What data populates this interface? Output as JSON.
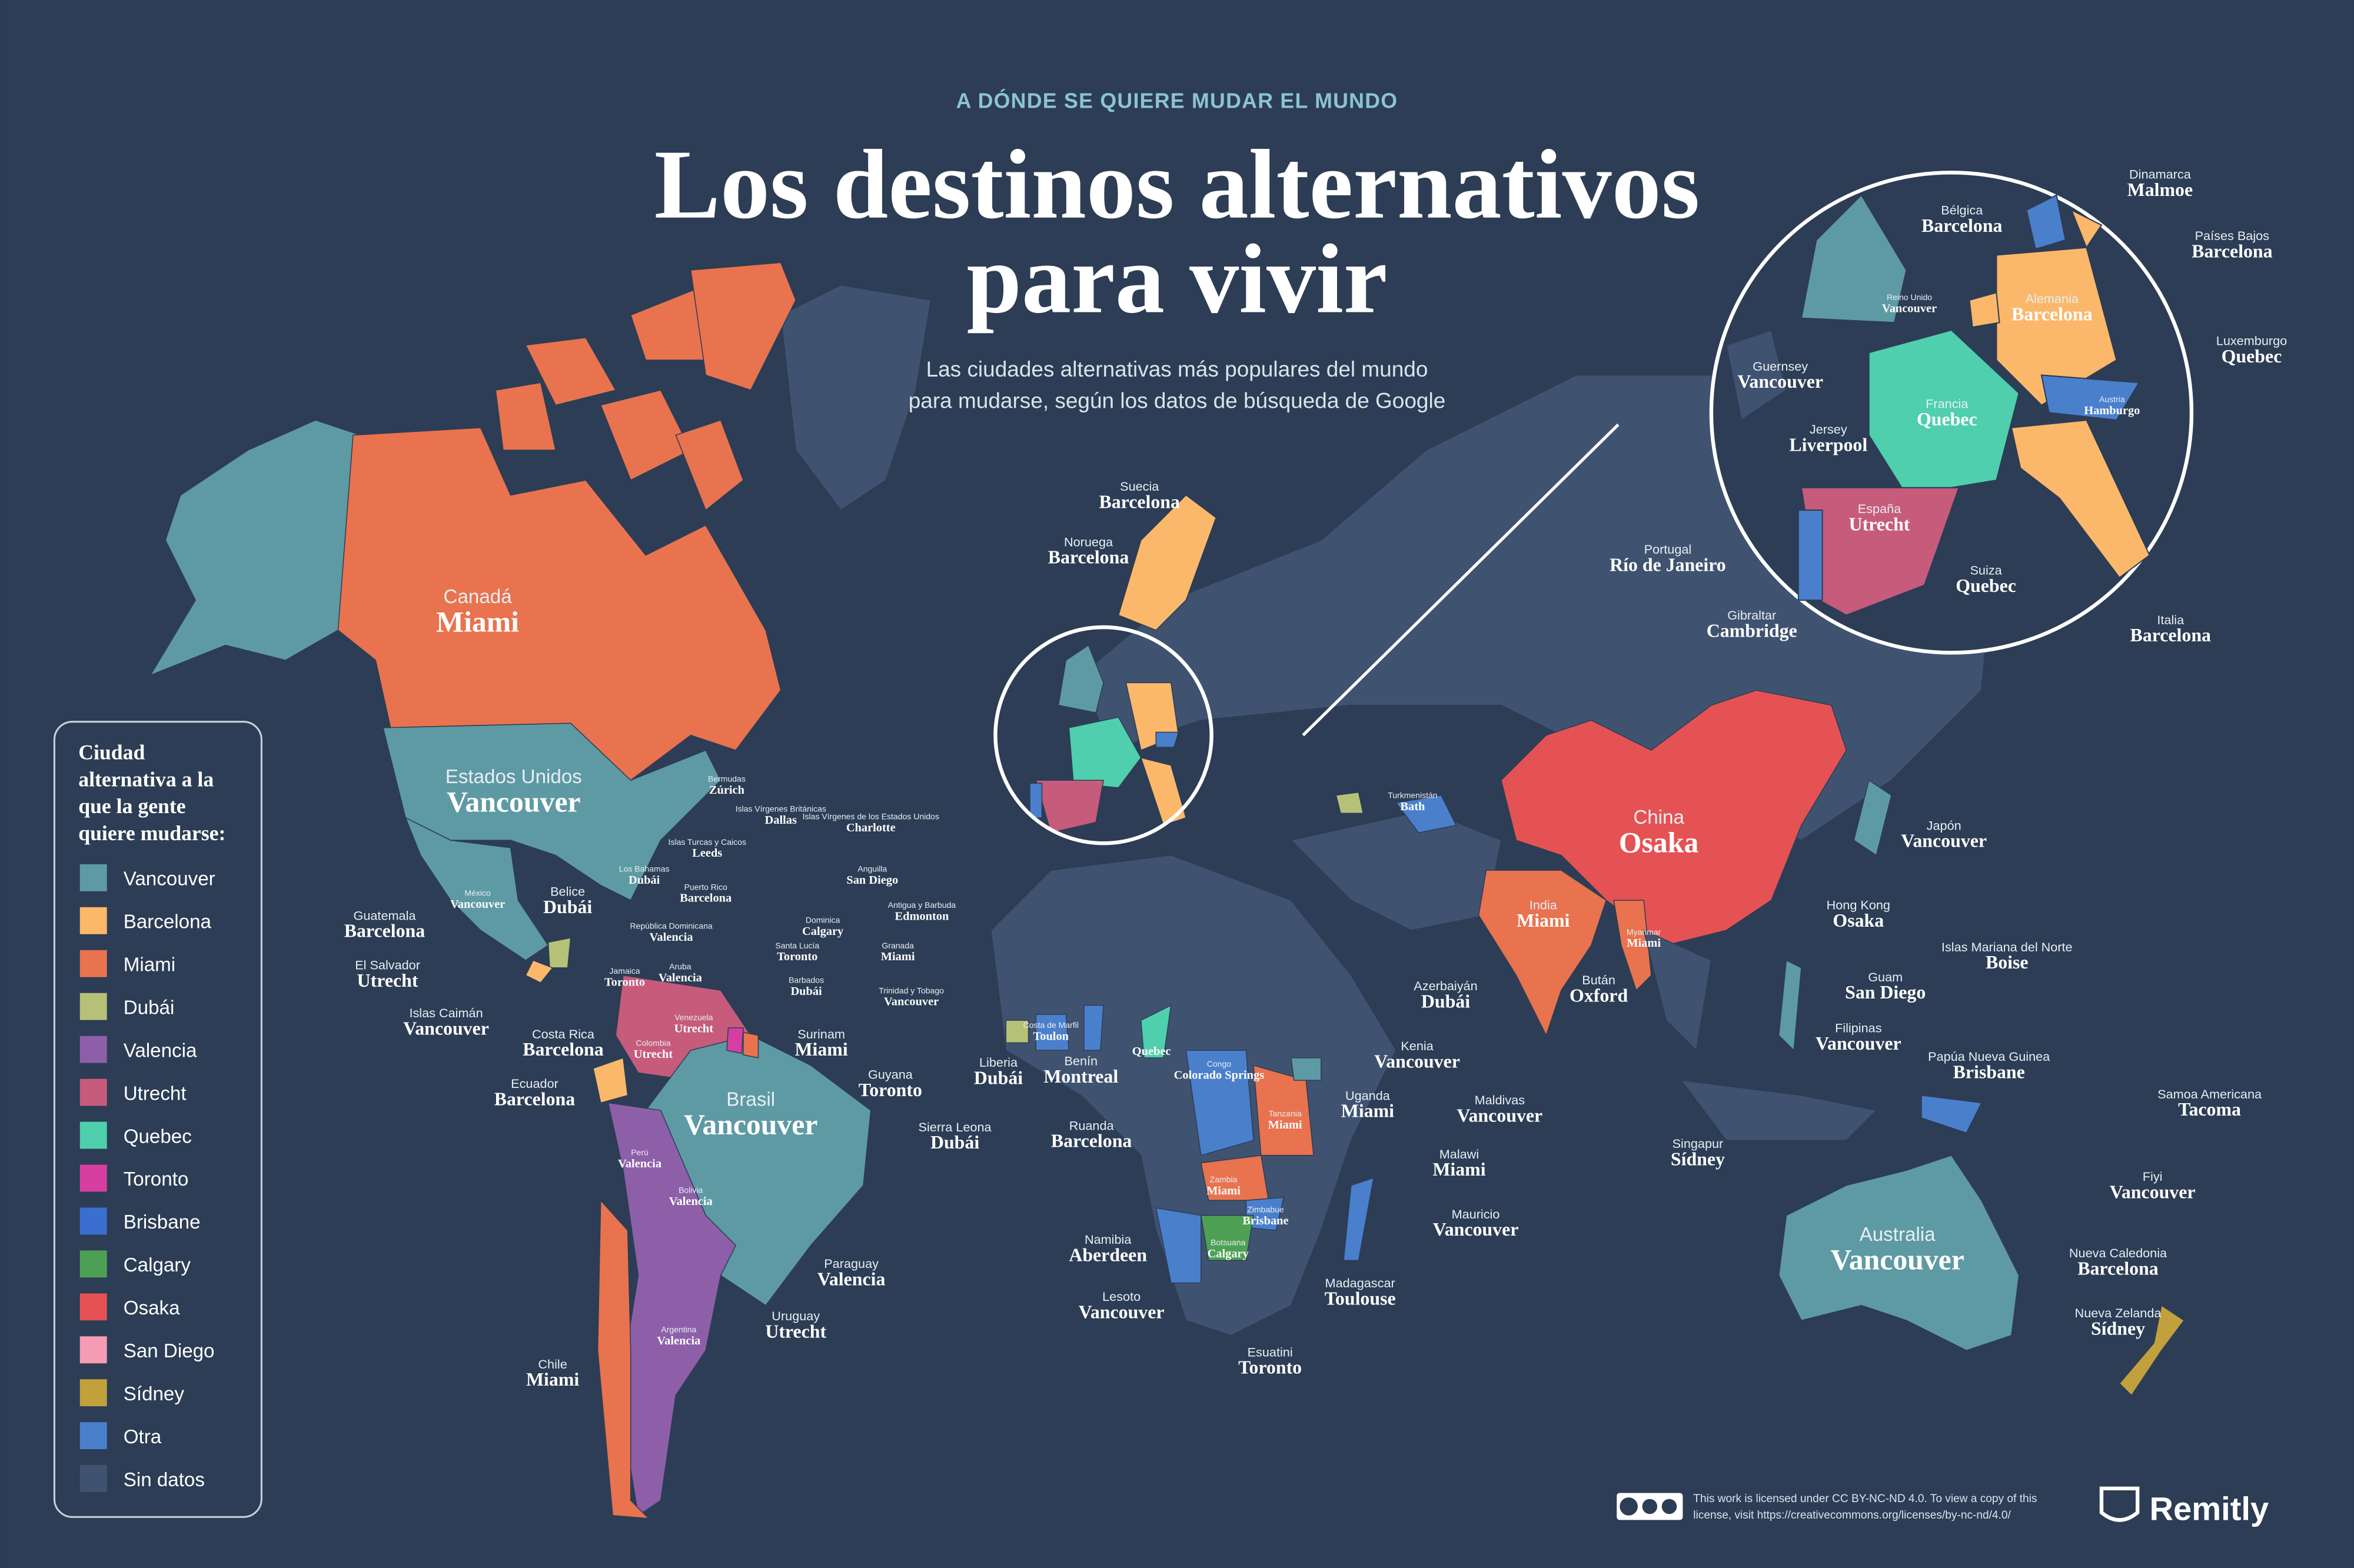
{
  "header": {
    "kicker": "A DÓNDE SE QUIERE MUDAR EL MUNDO",
    "title_lines": [
      "Los destinos alternativos",
      "para vivir"
    ],
    "description_lines": [
      "Las ciudades alternativas más populares del mundo",
      "para mudarse, según los datos de búsqueda de Google"
    ]
  },
  "legend": {
    "title_lines": [
      "Ciudad",
      "alternativa a la",
      "que la gente",
      "quiere mudarse:"
    ],
    "items": [
      {
        "name": "Vancouver",
        "color": "#5e9aa4"
      },
      {
        "name": "Barcelona",
        "color": "#fbb86a"
      },
      {
        "name": "Miami",
        "color": "#e8734e"
      },
      {
        "name": "Dubái",
        "color": "#b5c177"
      },
      {
        "name": "Valencia",
        "color": "#8d5fa9"
      },
      {
        "name": "Utrecht",
        "color": "#c65b7c"
      },
      {
        "name": "Quebec",
        "color": "#4fcfad"
      },
      {
        "name": "Toronto",
        "color": "#d63fa0"
      },
      {
        "name": "Brisbane",
        "color": "#3a6fcf"
      },
      {
        "name": "Calgary",
        "color": "#4ea154"
      },
      {
        "name": "Osaka",
        "color": "#e55254"
      },
      {
        "name": "San Diego",
        "color": "#f59cb4"
      },
      {
        "name": "Sídney",
        "color": "#c2a13c"
      },
      {
        "name": "Otra",
        "color": "#4a7fcc"
      },
      {
        "name": "Sin datos",
        "color": "#3f5370"
      }
    ]
  },
  "labels": [
    {
      "country": "Canadá",
      "city": "Miami"
    },
    {
      "country": "Estados Unidos",
      "city": "Vancouver"
    },
    {
      "country": "México",
      "city": "Vancouver"
    },
    {
      "country": "Belice",
      "city": "Dubái"
    },
    {
      "country": "Guatemala",
      "city": "Barcelona"
    },
    {
      "country": "El Salvador",
      "city": "Utrecht"
    },
    {
      "country": "Islas Caimán",
      "city": "Vancouver"
    },
    {
      "country": "Jamaica",
      "city": "Toronto"
    },
    {
      "country": "Costa Rica",
      "city": "Barcelona"
    },
    {
      "country": "Ecuador",
      "city": "Barcelona"
    },
    {
      "country": "Colombia",
      "city": "Utrecht"
    },
    {
      "country": "Venezuela",
      "city": "Utrecht"
    },
    {
      "country": "Surinam",
      "city": "Miami"
    },
    {
      "country": "Guyana",
      "city": "Toronto"
    },
    {
      "country": "Brasil",
      "city": "Vancouver"
    },
    {
      "country": "Perú",
      "city": "Valencia"
    },
    {
      "country": "Bolivia",
      "city": "Valencia"
    },
    {
      "country": "Paraguay",
      "city": "Valencia"
    },
    {
      "country": "Uruguay",
      "city": "Utrecht"
    },
    {
      "country": "Argentina",
      "city": "Valencia"
    },
    {
      "country": "Chile",
      "city": "Miami"
    },
    {
      "country": "Bermudas",
      "city": "Zúrich"
    },
    {
      "country": "Islas Vírgenes Británicas",
      "city": "Dallas"
    },
    {
      "country": "Islas Vírgenes de los Estados Unidos",
      "city": "Charlotte"
    },
    {
      "country": "Los Bahamas",
      "city": "Dubái"
    },
    {
      "country": "Islas Turcas y Caicos",
      "city": "Leeds"
    },
    {
      "country": "Anguilla",
      "city": "San Diego"
    },
    {
      "country": "Puerto Rico",
      "city": "Barcelona"
    },
    {
      "country": "Antigua y Barbuda",
      "city": "Edmonton"
    },
    {
      "country": "República Dominicana",
      "city": "Valencia"
    },
    {
      "country": "Dominica",
      "city": "Calgary"
    },
    {
      "country": "Santa Lucía",
      "city": "Toronto"
    },
    {
      "country": "Granada",
      "city": "Miami"
    },
    {
      "country": "Aruba",
      "city": "Valencia"
    },
    {
      "country": "Barbados",
      "city": "Dubái"
    },
    {
      "country": "Trinidad y Tobago",
      "city": "Vancouver"
    },
    {
      "country": "Suecia",
      "city": "Barcelona"
    },
    {
      "country": "Noruega",
      "city": "Barcelona"
    },
    {
      "country": "Liberia",
      "city": "Dubái"
    },
    {
      "country": "Costa de Marfil",
      "city": "Toulon"
    },
    {
      "country": "Sierra Leona",
      "city": "Dubái"
    },
    {
      "country": "Benín",
      "city": "Montreal"
    },
    {
      "city": "Quebec"
    },
    {
      "country": "Congo",
      "city": "Colorado Springs"
    },
    {
      "country": "Ruanda",
      "city": "Barcelona"
    },
    {
      "country": "Tanzania",
      "city": "Miami"
    },
    {
      "country": "Uganda",
      "city": "Miami"
    },
    {
      "country": "Kenia",
      "city": "Vancouver"
    },
    {
      "country": "Maldivas",
      "city": "Vancouver"
    },
    {
      "country": "Malawi",
      "city": "Miami"
    },
    {
      "country": "Zambia",
      "city": "Miami"
    },
    {
      "country": "Zimbabue",
      "city": "Brisbane"
    },
    {
      "country": "Botsuana",
      "city": "Calgary"
    },
    {
      "country": "Namibia",
      "city": "Aberdeen"
    },
    {
      "country": "Mauricio",
      "city": "Vancouver"
    },
    {
      "country": "Madagascar",
      "city": "Toulouse"
    },
    {
      "country": "Lesoto",
      "city": "Vancouver"
    },
    {
      "country": "Esuatini",
      "city": "Toronto"
    },
    {
      "country": "Azerbaiyán",
      "city": "Dubái"
    },
    {
      "country": "Turkmenistán",
      "city": "Bath"
    },
    {
      "country": "China",
      "city": "Osaka"
    },
    {
      "country": "India",
      "city": "Miami"
    },
    {
      "country": "Bután",
      "city": "Oxford"
    },
    {
      "country": "Myanmar",
      "city": "Miami"
    },
    {
      "country": "Japón",
      "city": "Vancouver"
    },
    {
      "country": "Hong Kong",
      "city": "Osaka"
    },
    {
      "country": "Islas Mariana del Norte",
      "city": "Boise"
    },
    {
      "country": "Guam",
      "city": "San Diego"
    },
    {
      "country": "Filipinas",
      "city": "Vancouver"
    },
    {
      "country": "Papúa Nueva Guinea",
      "city": "Brisbane"
    },
    {
      "country": "Singapur",
      "city": "Sídney"
    },
    {
      "country": "Samoa Americana",
      "city": "Tacoma"
    },
    {
      "country": "Fiyi",
      "city": "Vancouver"
    },
    {
      "country": "Nueva Caledonia",
      "city": "Barcelona"
    },
    {
      "country": "Nueva Zelanda",
      "city": "Sídney"
    },
    {
      "country": "Australia",
      "city": "Vancouver"
    },
    {
      "country": "Dinamarca",
      "city": "Malmoe"
    },
    {
      "country": "Bélgica",
      "city": "Barcelona"
    },
    {
      "country": "Países Bajos",
      "city": "Barcelona"
    },
    {
      "country": "Reino Unido",
      "city": "Vancouver"
    },
    {
      "country": "Alemania",
      "city": "Barcelona"
    },
    {
      "country": "Luxemburgo",
      "city": "Quebec"
    },
    {
      "country": "Guernsey",
      "city": "Vancouver"
    },
    {
      "country": "Austria",
      "city": "Hamburgo"
    },
    {
      "country": "Francia",
      "city": "Quebec"
    },
    {
      "country": "Jersey",
      "city": "Liverpool"
    },
    {
      "country": "España",
      "city": "Utrecht"
    },
    {
      "country": "Portugal",
      "city": "Río de Janeiro"
    },
    {
      "country": "Gibraltar",
      "city": "Cambridge"
    },
    {
      "country": "Suiza",
      "city": "Quebec"
    },
    {
      "country": "Italia",
      "city": "Barcelona"
    }
  ],
  "footer": {
    "license_lines": [
      "This work is licensed under CC BY-NC-ND 4.0. To view a copy of this",
      "license, visit https://creativecommons.org/licenses/by-nc-nd/4.0/"
    ],
    "brand": "Remitly"
  }
}
